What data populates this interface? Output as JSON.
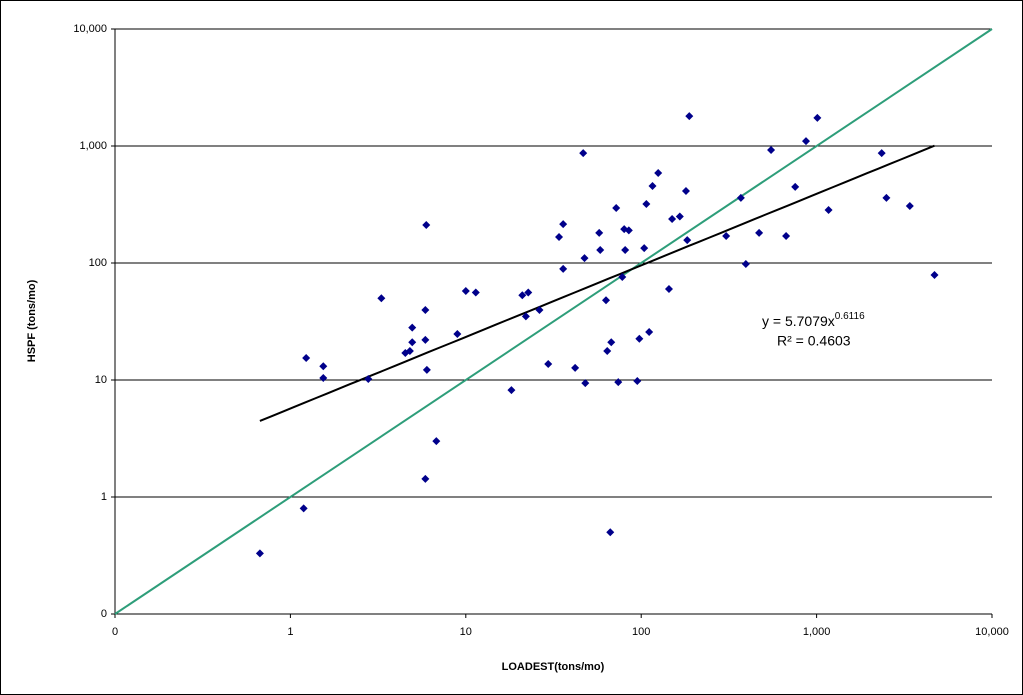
{
  "chart_data": {
    "type": "scatter",
    "log_x": true,
    "log_y": true,
    "grid": true,
    "x_label": "LOADEST(tons/mo)",
    "y_label": "HSPF (tons/mo)",
    "xlim": [
      0.1,
      10000
    ],
    "ylim": [
      0.1,
      10000
    ],
    "xticks": [
      {
        "value": 0.1,
        "label": "0"
      },
      1,
      10,
      100,
      {
        "value": 1000,
        "label": "1,000"
      },
      {
        "value": 10000,
        "label": "10,000"
      }
    ],
    "yticks": [
      {
        "value": 0.1,
        "label": "0"
      },
      1,
      10,
      100,
      {
        "value": 1000,
        "label": "1,000"
      },
      {
        "value": 10000,
        "label": "10,000"
      }
    ],
    "series": [
      {
        "color": "#00008b",
        "x": [
          0.67,
          1.19,
          1.23,
          1.54,
          1.54,
          2.78,
          3.3,
          4.52,
          4.8,
          4.95,
          4.95,
          5.88,
          5.88,
          5.95,
          6.0,
          5.88,
          6.79,
          8.95,
          10.0,
          11.4,
          18.2,
          21,
          22.7,
          22,
          26.3,
          29.5,
          34,
          35.9,
          35.9,
          42,
          46.7,
          47.5,
          48,
          57.6,
          58.4,
          63,
          64,
          67.5,
          66.6,
          72,
          74,
          78,
          81,
          80,
          85,
          95,
          97.6,
          104,
          107,
          111,
          116,
          125,
          144,
          150,
          166,
          180,
          183,
          188,
          305,
          370,
          395,
          470,
          550,
          670,
          755,
          870,
          1010,
          1170,
          2350,
          2500,
          3400,
          4700
        ],
        "values": [
          0.33,
          0.8,
          15.4,
          13.1,
          10.4,
          10.2,
          50,
          17,
          17.7,
          28,
          21,
          39.7,
          22,
          211,
          12.2,
          1.43,
          3.0,
          24.7,
          57.7,
          56,
          8.2,
          53,
          56,
          35,
          39.7,
          13.7,
          167,
          215,
          89,
          12.7,
          870,
          110,
          9.4,
          181,
          129,
          48,
          17.7,
          21,
          0.5,
          295,
          9.6,
          76,
          129,
          195,
          190,
          9.8,
          22.5,
          134,
          319,
          25.7,
          455,
          588,
          60,
          238,
          250,
          412,
          157,
          1800,
          170,
          360,
          98,
          181,
          925,
          170,
          447,
          1100,
          1740,
          284,
          870,
          360,
          307,
          79
        ]
      }
    ],
    "trendline": {
      "coefficient": 5.7079,
      "exponent": 0.6116,
      "x_range": [
        0.67,
        4700
      ],
      "color": "#000000"
    },
    "identity_line": {
      "x_range": [
        0.1,
        10000
      ],
      "color": "#2e9e7a"
    },
    "annotations": {
      "equation": "y = 5.7079x",
      "equation_exponent": "0.6116",
      "r_squared": "R² = 0.4603"
    }
  }
}
